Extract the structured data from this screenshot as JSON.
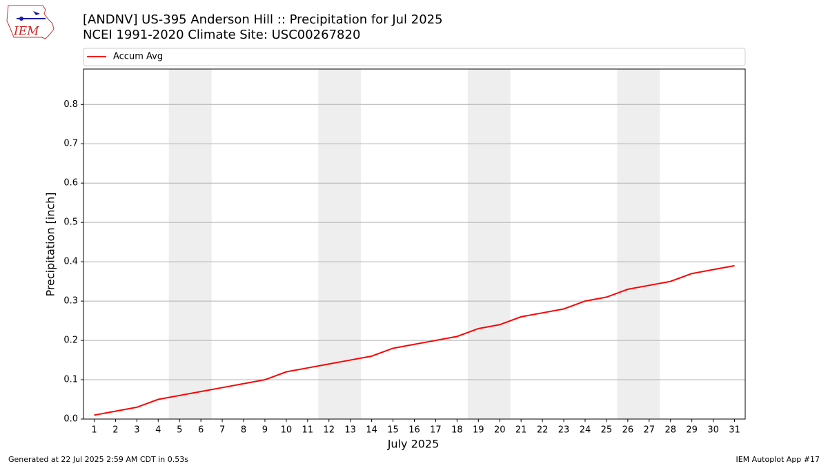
{
  "logo_text": "IEM",
  "footer_left": "Generated at 22 Jul 2025 2:59 AM CDT in 0.53s",
  "footer_right": "IEM Autoplot App #17",
  "chart_data": {
    "type": "line",
    "title": "[ANDNV] US-395 Anderson Hill  :: Precipitation for Jul 2025",
    "subtitle": "NCEI 1991-2020 Climate Site: USC00267820",
    "x_label": "July 2025",
    "y_label": "Precipitation [inch]",
    "x": [
      1,
      2,
      3,
      4,
      5,
      6,
      7,
      8,
      9,
      10,
      11,
      12,
      13,
      14,
      15,
      16,
      17,
      18,
      19,
      20,
      21,
      22,
      23,
      24,
      25,
      26,
      27,
      28,
      29,
      30,
      31
    ],
    "series": [
      {
        "name": "Accum Avg",
        "color": "#ff0000",
        "values": [
          0.01,
          0.02,
          0.03,
          0.05,
          0.06,
          0.07,
          0.08,
          0.09,
          0.1,
          0.12,
          0.13,
          0.14,
          0.15,
          0.16,
          0.18,
          0.19,
          0.2,
          0.21,
          0.23,
          0.24,
          0.26,
          0.27,
          0.28,
          0.3,
          0.31,
          0.33,
          0.34,
          0.35,
          0.37,
          0.38,
          0.39
        ]
      }
    ],
    "shaded_spans": [
      [
        4.5,
        6.5
      ],
      [
        11.5,
        13.5
      ],
      [
        18.5,
        20.5
      ],
      [
        25.5,
        27.5
      ]
    ],
    "shade_color": "#eeeeee",
    "xlim": [
      0.5,
      31.5
    ],
    "xticks": [
      1,
      2,
      3,
      4,
      5,
      6,
      7,
      8,
      9,
      10,
      11,
      12,
      13,
      14,
      15,
      16,
      17,
      18,
      19,
      20,
      21,
      22,
      23,
      24,
      25,
      26,
      27,
      28,
      29,
      30,
      31
    ],
    "ylim": [
      0,
      0.89
    ],
    "yticks": [
      {
        "value": 0,
        "label": "0.0"
      },
      0.1,
      0.2,
      0.3,
      0.4,
      0.5,
      0.6,
      0.7,
      0.8
    ],
    "grid": true,
    "legend": "top"
  }
}
